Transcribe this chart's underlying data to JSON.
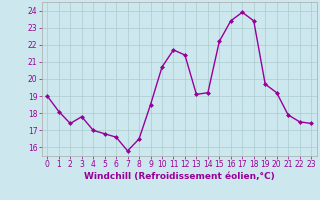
{
  "x": [
    0,
    1,
    2,
    3,
    4,
    5,
    6,
    7,
    8,
    9,
    10,
    11,
    12,
    13,
    14,
    15,
    16,
    17,
    18,
    19,
    20,
    21,
    22,
    23
  ],
  "y": [
    19.0,
    18.1,
    17.4,
    17.8,
    17.0,
    16.8,
    16.6,
    15.8,
    16.5,
    18.5,
    20.7,
    21.7,
    21.4,
    19.1,
    19.2,
    22.2,
    23.4,
    23.9,
    23.4,
    19.7,
    19.2,
    17.9,
    17.5,
    17.4
  ],
  "line_color": "#990099",
  "marker": "D",
  "marker_size": 2.0,
  "linewidth": 1.0,
  "xlabel": "Windchill (Refroidissement éolien,°C)",
  "xlabel_fontsize": 6.5,
  "ylim": [
    15.5,
    24.5
  ],
  "xlim": [
    -0.5,
    23.5
  ],
  "yticks": [
    16,
    17,
    18,
    19,
    20,
    21,
    22,
    23,
    24
  ],
  "xticks": [
    0,
    1,
    2,
    3,
    4,
    5,
    6,
    7,
    8,
    9,
    10,
    11,
    12,
    13,
    14,
    15,
    16,
    17,
    18,
    19,
    20,
    21,
    22,
    23
  ],
  "bg_color": "#cce8ee",
  "grid_color": "#aacccc",
  "tick_color": "#990099",
  "label_color": "#990099",
  "tick_fontsize": 5.5,
  "spine_color": "#aaaaaa"
}
